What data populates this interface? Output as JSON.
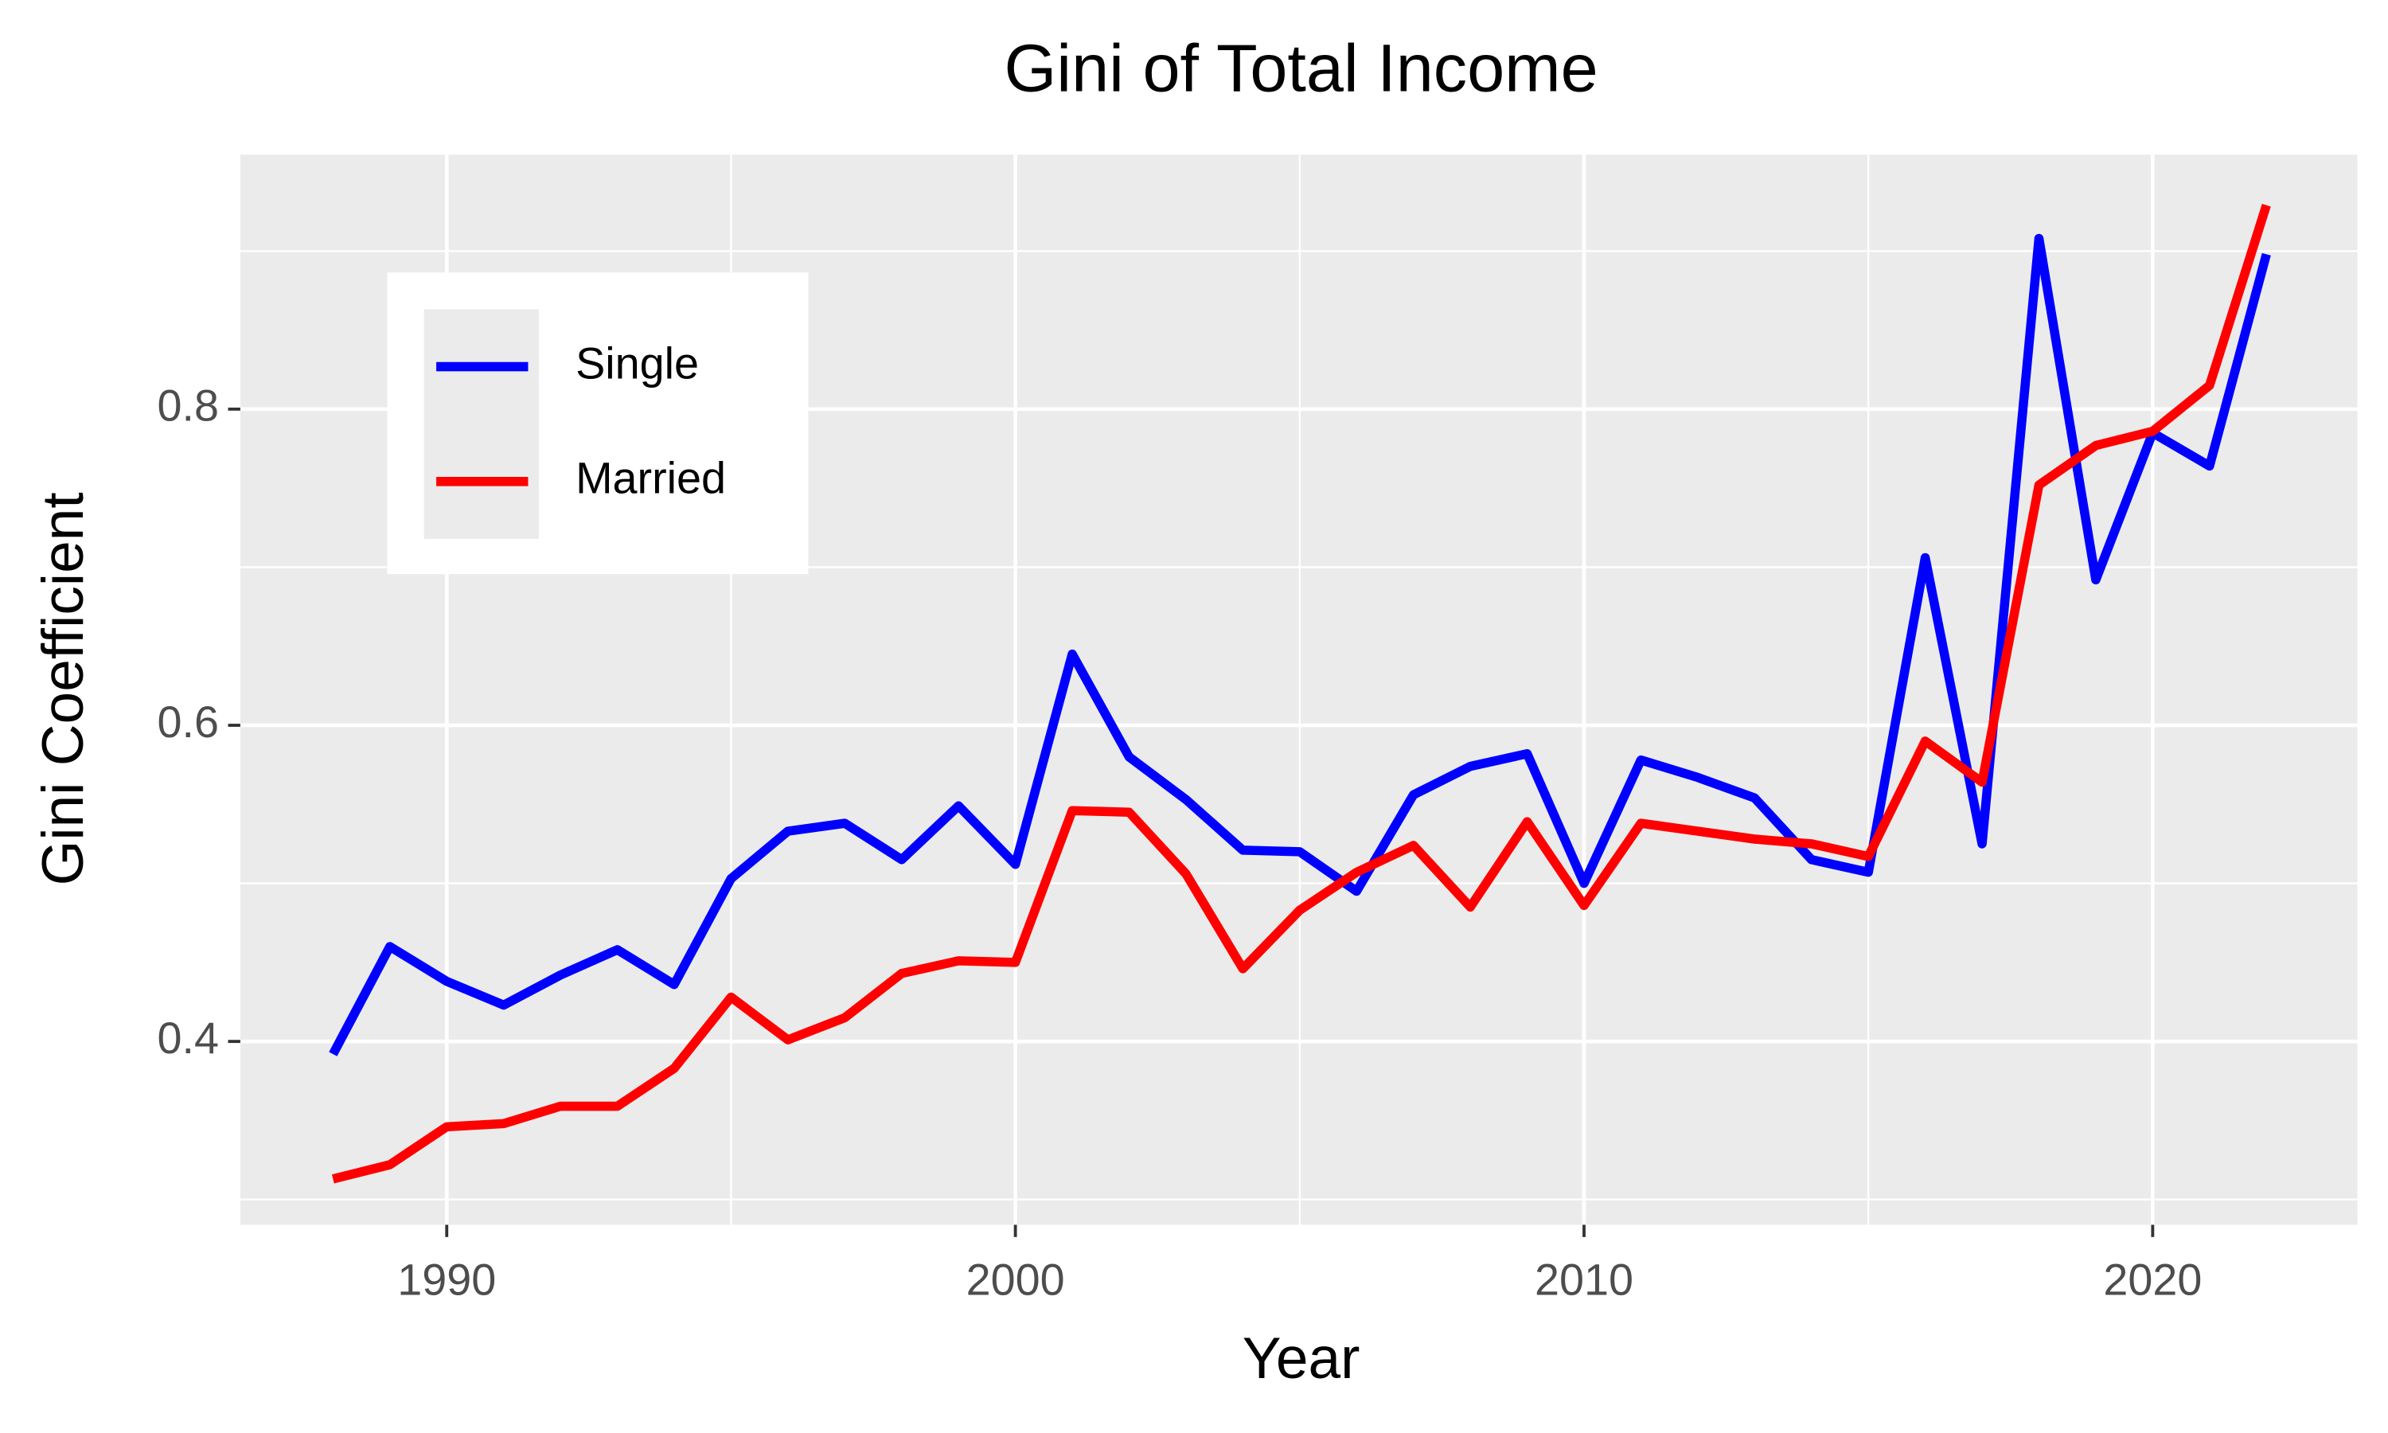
{
  "chart_data": {
    "type": "line",
    "title": "Gini of Total Income",
    "x_label": "Year",
    "y_label": "Gini Coefficient",
    "x": [
      1988,
      1989,
      1990,
      1991,
      1992,
      1993,
      1994,
      1995,
      1996,
      1997,
      1998,
      1999,
      2000,
      2001,
      2002,
      2003,
      2004,
      2005,
      2006,
      2007,
      2008,
      2009,
      2010,
      2011,
      2012,
      2013,
      2014,
      2015,
      2016,
      2017,
      2018,
      2019,
      2020,
      2021,
      2022
    ],
    "series": [
      {
        "name": "Single",
        "color": "#0000ff",
        "values": [
          0.392,
          0.46,
          0.438,
          0.423,
          0.442,
          0.458,
          0.436,
          0.503,
          0.533,
          0.538,
          0.515,
          0.549,
          0.512,
          0.645,
          0.58,
          0.553,
          0.521,
          0.52,
          0.495,
          0.556,
          0.574,
          0.582,
          0.5,
          0.578,
          0.567,
          0.554,
          0.515,
          0.507,
          0.706,
          0.525,
          0.908,
          0.692,
          0.785,
          0.764,
          0.898
        ]
      },
      {
        "name": "Married",
        "color": "#ff0000",
        "values": [
          0.313,
          0.322,
          0.346,
          0.348,
          0.359,
          0.359,
          0.383,
          0.428,
          0.401,
          0.415,
          0.443,
          0.451,
          0.45,
          0.546,
          0.545,
          0.506,
          0.446,
          0.483,
          0.507,
          0.524,
          0.485,
          0.539,
          0.486,
          0.538,
          0.533,
          0.528,
          0.525,
          0.517,
          0.59,
          0.564,
          0.752,
          0.777,
          0.786,
          0.815,
          0.929
        ]
      }
    ],
    "xlim": [
      1986.37,
      2023.6
    ],
    "ylim": [
      0.284,
      0.961
    ],
    "xticks": [
      1990,
      2000,
      2010,
      2020
    ],
    "yticks": [
      0.4,
      0.6,
      0.8
    ],
    "x_minor_grid": [
      1995,
      2005,
      2015
    ],
    "y_minor_grid": [
      0.3,
      0.5,
      0.7,
      0.9
    ],
    "grid": true,
    "legend_position": "top-left"
  }
}
